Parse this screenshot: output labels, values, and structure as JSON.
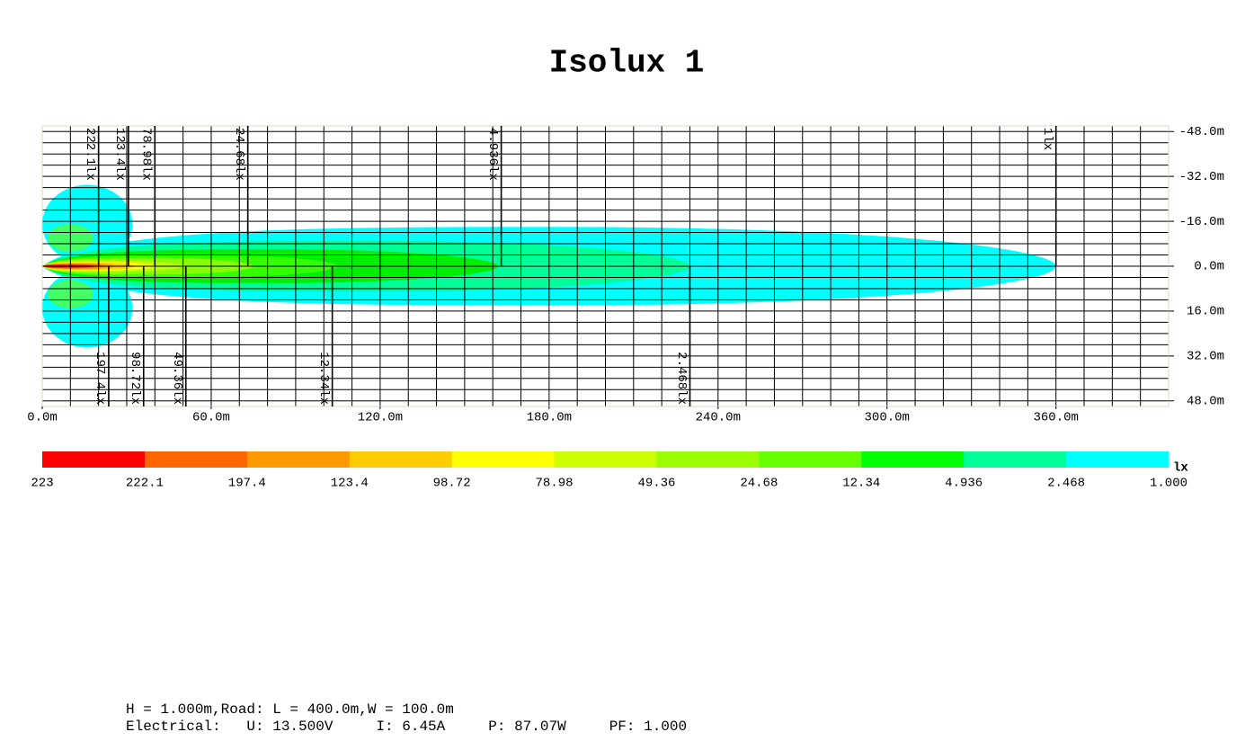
{
  "chart_data": {
    "type": "isolux",
    "title": "Isolux 1",
    "xlim": [
      0,
      400
    ],
    "ylim": [
      -50,
      50
    ],
    "xticks": [
      {
        "value": 0,
        "label": "0.0m"
      },
      {
        "value": 60,
        "label": "60.0m"
      },
      {
        "value": 120,
        "label": "120.0m"
      },
      {
        "value": 180,
        "label": "180.0m"
      },
      {
        "value": 240,
        "label": "240.0m"
      },
      {
        "value": 300,
        "label": "300.0m"
      },
      {
        "value": 360,
        "label": "360.0m"
      }
    ],
    "yticks": [
      {
        "value": -48,
        "label": "-48.0m"
      },
      {
        "value": -32,
        "label": "-32.0m"
      },
      {
        "value": -16,
        "label": "-16.0m"
      },
      {
        "value": 0,
        "label": "0.0m"
      },
      {
        "value": 16,
        "label": "16.0m"
      },
      {
        "value": 32,
        "label": "32.0m"
      },
      {
        "value": 48,
        "label": "48.0m"
      }
    ],
    "grid": true,
    "contours": [
      {
        "level": 1,
        "x_end": 360,
        "half_width": 14,
        "color": "#00ffff"
      },
      {
        "level": 2.468,
        "x_end": 230,
        "half_width": 9,
        "color": "#00ff99"
      },
      {
        "level": 4.936,
        "x_end": 162,
        "half_width": 6,
        "color": "#00ee00"
      },
      {
        "level": 12.34,
        "x_end": 105,
        "half_width": 4,
        "color": "#33ff00"
      },
      {
        "level": 24.68,
        "x_end": 75,
        "half_width": 3,
        "color": "#88ff00"
      },
      {
        "level": 49.36,
        "x_end": 50,
        "half_width": 2,
        "color": "#bbff00"
      },
      {
        "level": 78.98,
        "x_end": 40,
        "half_width": 1.6,
        "color": "#ffff00"
      },
      {
        "level": 98.72,
        "x_end": 33,
        "half_width": 1.3,
        "color": "#ffcc00"
      },
      {
        "level": 123.4,
        "x_end": 26,
        "half_width": 1,
        "color": "#ff9900"
      },
      {
        "level": 197.4,
        "x_end": 22,
        "half_width": 0.8,
        "color": "#ff6600"
      },
      {
        "level": 222.1,
        "x_end": 19,
        "half_width": 0.5,
        "color": "#ff0000"
      }
    ],
    "side_lobes": [
      {
        "level": 1,
        "x": 16,
        "y": -15,
        "rx": 16,
        "ry": 14,
        "color": "#00ffff"
      },
      {
        "level": 1,
        "x": 16,
        "y": 15,
        "rx": 16,
        "ry": 14,
        "color": "#00ffff"
      },
      {
        "level": 2.468,
        "x": 10,
        "y": -10,
        "rx": 8,
        "ry": 5,
        "color": "#44ff66"
      },
      {
        "level": 2.468,
        "x": 10,
        "y": 10,
        "rx": 8,
        "ry": 5,
        "color": "#44ff66"
      }
    ],
    "contour_labels": [
      {
        "label": "222.1lx",
        "x": 20,
        "side": "top"
      },
      {
        "label": "123.4lx",
        "x": 30.6,
        "side": "top"
      },
      {
        "label": "78.98lx",
        "x": 40,
        "side": "top"
      },
      {
        "label": "24.68lx",
        "x": 73,
        "side": "top"
      },
      {
        "label": "4.936lx",
        "x": 163,
        "side": "top"
      },
      {
        "label": "1lx",
        "x": 360,
        "side": "top"
      },
      {
        "label": "197.4lx",
        "x": 23.6,
        "side": "bottom"
      },
      {
        "label": "98.72lx",
        "x": 36,
        "side": "bottom"
      },
      {
        "label": "49.36lx",
        "x": 51,
        "side": "bottom"
      },
      {
        "label": "12.34lx",
        "x": 103,
        "side": "bottom"
      },
      {
        "label": "2.468lx",
        "x": 230,
        "side": "bottom"
      }
    ],
    "legend": {
      "unit": "lx",
      "levels": [
        223,
        222.1,
        197.4,
        123.4,
        98.72,
        78.98,
        49.36,
        24.68,
        12.34,
        4.936,
        2.468,
        {
          "value": 1,
          "label": "1.000"
        }
      ],
      "colors": [
        "#ff0000",
        "#ff6600",
        "#ff9900",
        "#ffcc00",
        "#ffff00",
        "#ccff00",
        "#99ff00",
        "#66ff00",
        "#00ff00",
        "#00ff99",
        "#00ffff"
      ]
    },
    "footer": [
      "H = 1.000m,Road: L = 400.0m,W = 100.0m",
      "Electrical:   U: 13.500V     I: 6.45A     P: 87.07W     PF: 1.000"
    ]
  }
}
